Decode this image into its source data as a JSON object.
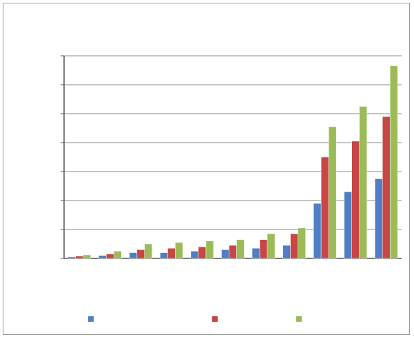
{
  "chart_data": {
    "type": "bar",
    "title": "",
    "xlabel": "",
    "ylabel": "",
    "categories": [
      "",
      "",
      "",
      "",
      "",
      "",
      "",
      "",
      "",
      "",
      ""
    ],
    "ylim": [
      0,
      7
    ],
    "grid": true,
    "legend_position": "bottom",
    "series": [
      {
        "color": "#4f7ec4",
        "values": [
          0.05,
          0.1,
          0.2,
          0.2,
          0.25,
          0.3,
          0.35,
          0.45,
          1.9,
          2.3,
          2.75
        ]
      },
      {
        "color": "#c94646",
        "values": [
          0.08,
          0.15,
          0.3,
          0.35,
          0.4,
          0.45,
          0.65,
          0.85,
          3.5,
          4.05,
          4.9
        ]
      },
      {
        "color": "#9bbb57",
        "values": [
          0.12,
          0.25,
          0.5,
          0.55,
          0.6,
          0.65,
          0.85,
          1.05,
          4.55,
          5.25,
          6.65
        ]
      }
    ]
  }
}
